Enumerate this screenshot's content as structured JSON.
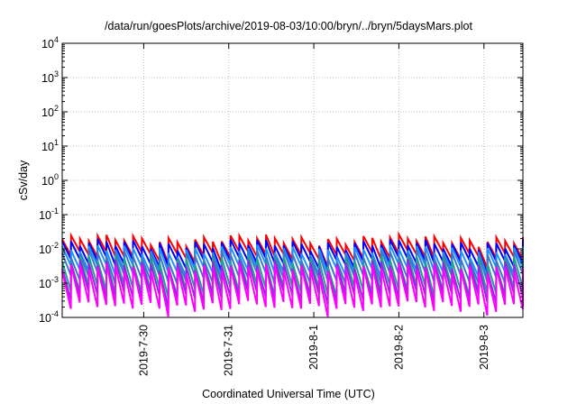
{
  "chart_data": {
    "type": "line",
    "title": "/data/run/goesPlots/archive/2019-08-03/10:00/bryn/../bryn/5daysMars.plot",
    "xlabel": "Coordinated Universal Time (UTC)",
    "ylabel": "cSv/day",
    "y_scale": "log",
    "ylim": [
      0.0001,
      10000
    ],
    "y_ticks": [
      {
        "value": 0.0001,
        "base": "10",
        "exp": "-4"
      },
      {
        "value": 0.001,
        "base": "10",
        "exp": "-3"
      },
      {
        "value": 0.01,
        "base": "10",
        "exp": "-2"
      },
      {
        "value": 0.1,
        "base": "10",
        "exp": "-1"
      },
      {
        "value": 1,
        "base": "10",
        "exp": "0"
      },
      {
        "value": 10,
        "base": "10",
        "exp": "1"
      },
      {
        "value": 100,
        "base": "10",
        "exp": "2"
      },
      {
        "value": 1000,
        "base": "10",
        "exp": "3"
      },
      {
        "value": 10000,
        "base": "10",
        "exp": "4"
      }
    ],
    "xlim": [
      "2019-07-29T01:00",
      "2019-08-03T11:00"
    ],
    "x_ticks": [
      "2019-7-30",
      "2019-7-31",
      "2019-8-1",
      "2019-8-2",
      "2019-8-3"
    ],
    "grid": true,
    "period_hours": 2.5,
    "series": [
      {
        "color": "#ff0000",
        "peak": 0.019,
        "trough": 0.0065
      },
      {
        "color": "#0000ff",
        "peak": 0.014,
        "trough": 0.0042
      },
      {
        "color": "#1e90ff",
        "peak": 0.0095,
        "trough": 0.0026
      },
      {
        "color": "#3a78c8",
        "peak": 0.0068,
        "trough": 0.0015
      },
      {
        "color": "#20a090",
        "peak": 0.0048,
        "trough": 0.00065
      },
      {
        "color": "#8a2be2",
        "peak": 0.0036,
        "trough": 0.00042
      },
      {
        "color": "#ff00ff",
        "peak": 0.0028,
        "trough": 0.00022
      }
    ]
  }
}
